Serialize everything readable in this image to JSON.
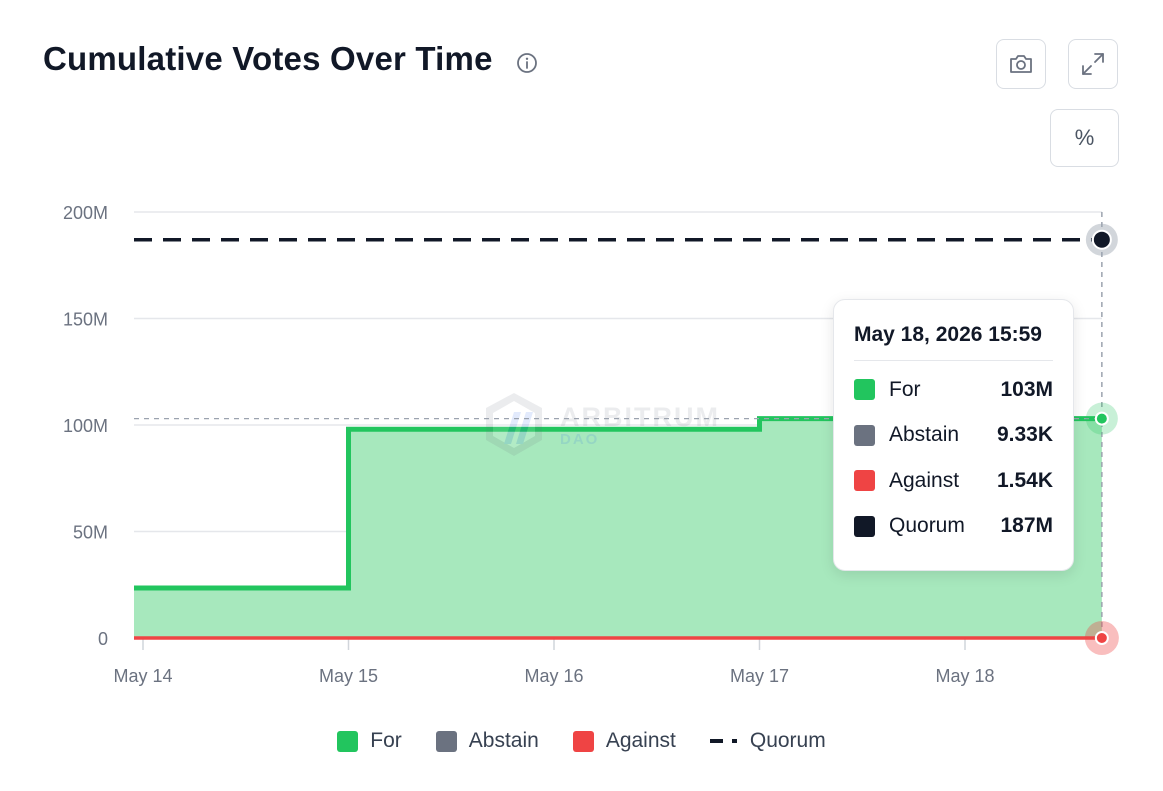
{
  "header": {
    "title": "Cumulative Votes Over Time",
    "info_icon": "info-circle-icon",
    "camera_icon": "camera-icon",
    "expand_icon": "expand-icon",
    "percent_label": "%"
  },
  "watermark": {
    "text": "ARBITRUM",
    "subtext": "DAO",
    "logo": "arbitrum-logo"
  },
  "tooltip": {
    "date": "May 18, 2026 15:59",
    "rows": [
      {
        "label": "For",
        "value": "103M",
        "color": "#22c55e"
      },
      {
        "label": "Abstain",
        "value": "9.33K",
        "color": "#6b7280"
      },
      {
        "label": "Against",
        "value": "1.54K",
        "color": "#ef4444"
      },
      {
        "label": "Quorum",
        "value": "187M",
        "color": "#111827"
      }
    ]
  },
  "chart_data": {
    "type": "area",
    "title": "Cumulative Votes Over Time",
    "x_unit": "date",
    "x_ticks": [
      "May 14",
      "May 15",
      "May 16",
      "May 17",
      "May 18"
    ],
    "y_ticks": [
      "200M",
      "150M",
      "100M",
      "50M",
      "0"
    ],
    "ylim": [
      0,
      200000000
    ],
    "grid": true,
    "legend_position": "bottom",
    "series": [
      {
        "name": "For",
        "color": "#22c55e",
        "fill": "#a7e8bd",
        "step": true,
        "points": [
          [
            "May 14",
            23500000
          ],
          [
            "May 15",
            23500000
          ],
          [
            "May 15",
            98000000
          ],
          [
            "May 17",
            98000000
          ],
          [
            "May 17",
            103000000
          ],
          [
            "May 18 15:59",
            103000000
          ]
        ]
      },
      {
        "name": "Abstain",
        "color": "#6b7280",
        "points": [
          [
            "May 14",
            0
          ],
          [
            "May 18 15:59",
            9330
          ]
        ]
      },
      {
        "name": "Against",
        "color": "#ef4444",
        "points": [
          [
            "May 14",
            0
          ],
          [
            "May 18 15:59",
            1540
          ]
        ]
      },
      {
        "name": "Quorum",
        "color": "#111827",
        "dashed": true,
        "points": [
          [
            "May 14",
            187000000
          ],
          [
            "May 18 15:59",
            187000000
          ]
        ]
      }
    ]
  }
}
